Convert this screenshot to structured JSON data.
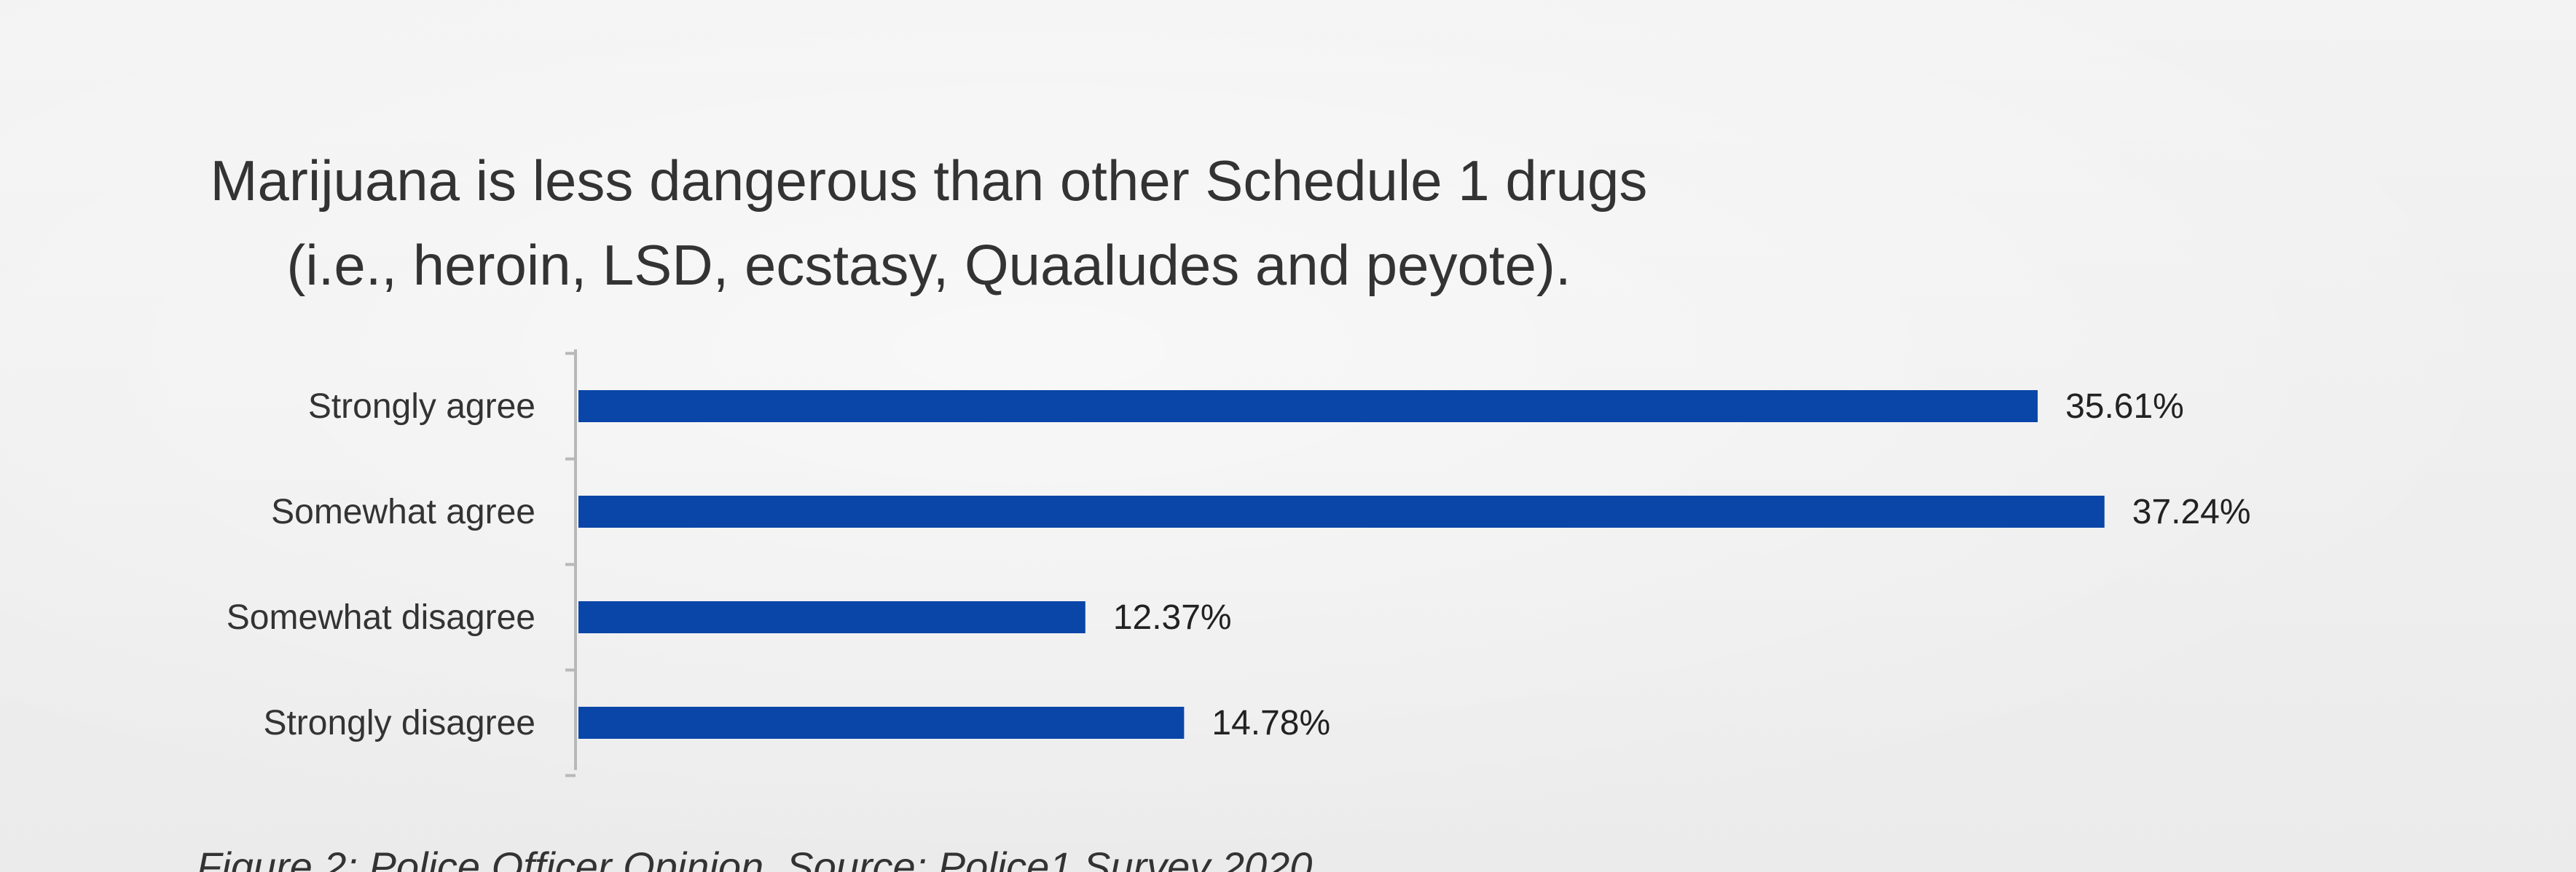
{
  "chart_data": {
    "type": "bar",
    "orientation": "horizontal",
    "title": "Marijuana is less dangerous than other Schedule 1 drugs\n(i.e., heroin, LSD, ecstasy, Quaaludes and peyote).",
    "categories": [
      "Strongly agree",
      "Somewhat agree",
      "Somewhat disagree",
      "Strongly disagree"
    ],
    "values": [
      35.61,
      37.24,
      12.37,
      14.78
    ],
    "value_labels": [
      "35.61%",
      "37.24%",
      "12.37%",
      "14.78%"
    ],
    "unit": "%",
    "xlim": [
      0,
      40
    ],
    "bar_color": "#0a46a8",
    "grid": false,
    "legend": "none"
  },
  "caption": "Figure 2: Police Officer Opinion. Source: Police1 Survey 2020"
}
